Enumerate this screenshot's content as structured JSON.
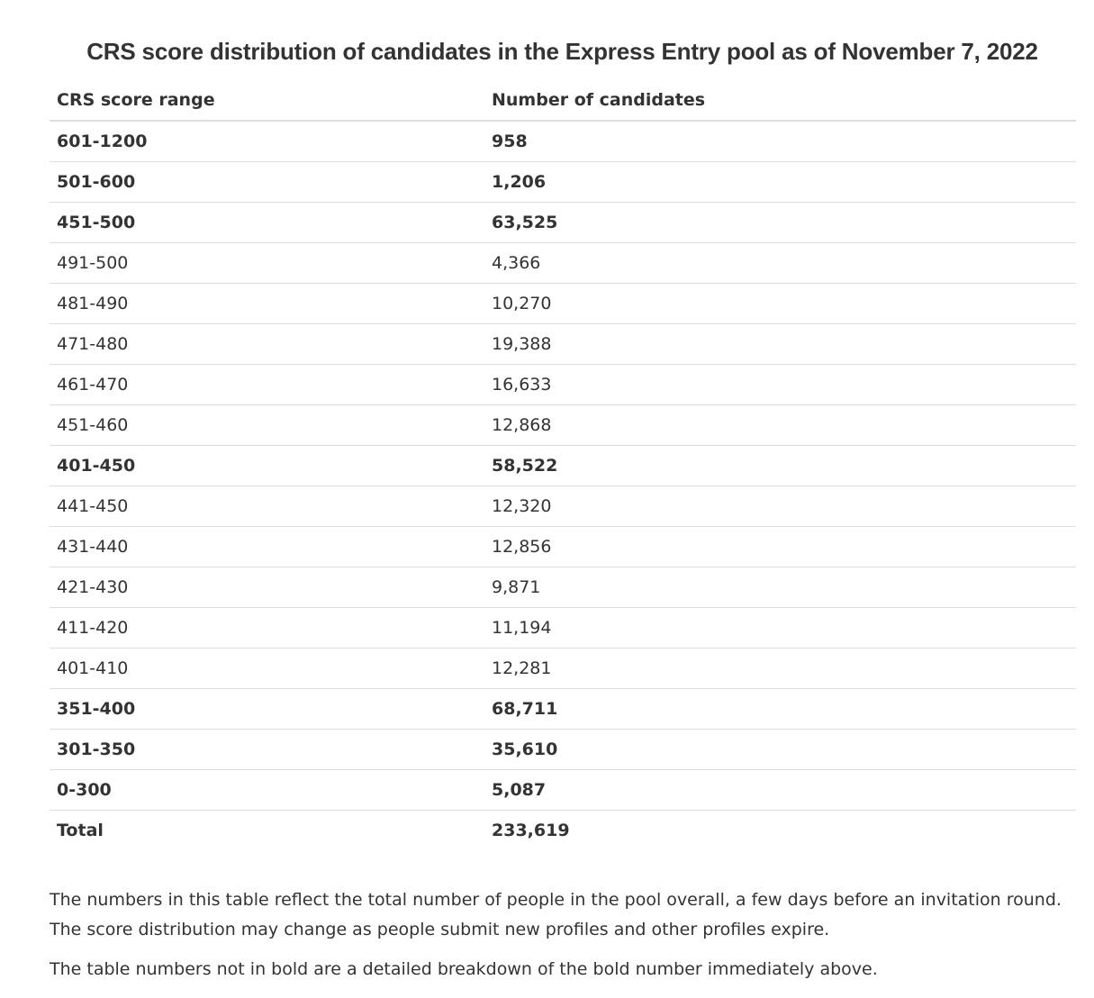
{
  "caption": "CRS score distribution of candidates in the Express Entry pool as of November 7, 2022",
  "table": {
    "headers": [
      "CRS score range",
      "Number of candidates"
    ],
    "rows": [
      {
        "range": "601-1200",
        "count": "958",
        "bold": true
      },
      {
        "range": "501-600",
        "count": "1,206",
        "bold": true
      },
      {
        "range": "451-500",
        "count": "63,525",
        "bold": true
      },
      {
        "range": "491-500",
        "count": "4,366",
        "bold": false
      },
      {
        "range": "481-490",
        "count": "10,270",
        "bold": false
      },
      {
        "range": "471-480",
        "count": "19,388",
        "bold": false
      },
      {
        "range": "461-470",
        "count": "16,633",
        "bold": false
      },
      {
        "range": "451-460",
        "count": "12,868",
        "bold": false
      },
      {
        "range": "401-450",
        "count": "58,522",
        "bold": true
      },
      {
        "range": "441-450",
        "count": "12,320",
        "bold": false
      },
      {
        "range": "431-440",
        "count": "12,856",
        "bold": false
      },
      {
        "range": "421-430",
        "count": "9,871",
        "bold": false
      },
      {
        "range": "411-420",
        "count": "11,194",
        "bold": false
      },
      {
        "range": "401-410",
        "count": "12,281",
        "bold": false
      },
      {
        "range": "351-400",
        "count": "68,711",
        "bold": true
      },
      {
        "range": "301-350",
        "count": "35,610",
        "bold": true
      },
      {
        "range": "0-300",
        "count": "5,087",
        "bold": true
      }
    ],
    "total": {
      "label": "Total",
      "count": "233,619"
    }
  },
  "notes": [
    "The numbers in this table reflect the total number of people in the pool overall, a few days before an invitation round. The score distribution may change as people submit new profiles and other profiles expire.",
    "The table numbers not in bold are a detailed breakdown of the bold number immediately above."
  ]
}
